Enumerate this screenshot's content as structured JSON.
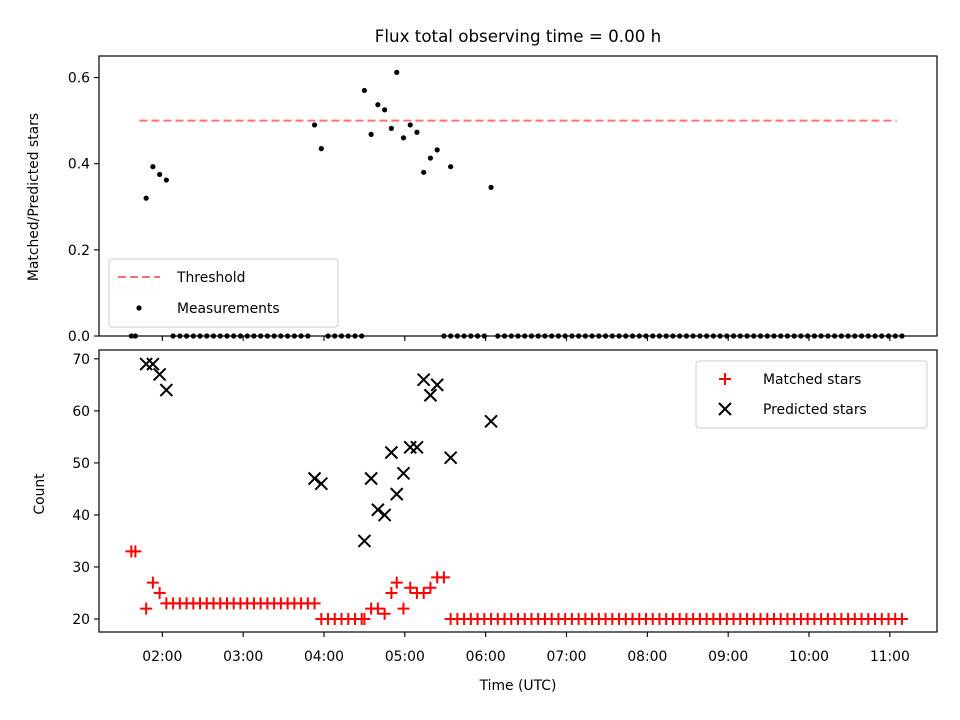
{
  "chart_data": [
    {
      "type": "scatter",
      "title": "Flux total observing time = 0.00 h",
      "xlabel": "",
      "ylabel": "Matched/Predicted stars",
      "x_range": [
        "01:13",
        "11:35"
      ],
      "ylim": [
        0,
        0.65
      ],
      "yticks": [
        "0.0",
        "0.2",
        "0.4",
        "0.6"
      ],
      "xticks": [
        "02:00",
        "03:00",
        "04:00",
        "05:00",
        "06:00",
        "07:00",
        "08:00",
        "09:00",
        "10:00",
        "11:00"
      ],
      "grid": false,
      "legend_position": "lower-left",
      "legend": [
        {
          "label": "Threshold",
          "style": "dashed-line",
          "color": "#ff7070"
        },
        {
          "label": "Measurements",
          "style": "dot",
          "color": "#000000"
        }
      ],
      "threshold": {
        "value": 0.5,
        "x_start": "01:43",
        "x_end": "11:05"
      },
      "series": [
        {
          "name": "Measurements",
          "marker": "dot",
          "color": "#000000",
          "points": [
            [
              "01:37",
              0.0
            ],
            [
              "01:40",
              0.0
            ],
            [
              "01:48",
              0.32
            ],
            [
              "01:53",
              0.393
            ],
            [
              "01:58",
              0.375
            ],
            [
              "02:03",
              0.362
            ],
            [
              "02:08",
              0.0
            ],
            [
              "02:13",
              0.0
            ],
            [
              "02:18",
              0.0
            ],
            [
              "02:23",
              0.0
            ],
            [
              "02:28",
              0.0
            ],
            [
              "02:33",
              0.0
            ],
            [
              "02:38",
              0.0
            ],
            [
              "02:43",
              0.0
            ],
            [
              "02:48",
              0.0
            ],
            [
              "02:53",
              0.0
            ],
            [
              "02:58",
              0.0
            ],
            [
              "03:03",
              0.0
            ],
            [
              "03:08",
              0.0
            ],
            [
              "03:13",
              0.0
            ],
            [
              "03:18",
              0.0
            ],
            [
              "03:23",
              0.0
            ],
            [
              "03:28",
              0.0
            ],
            [
              "03:33",
              0.0
            ],
            [
              "03:38",
              0.0
            ],
            [
              "03:43",
              0.0
            ],
            [
              "03:48",
              0.0
            ],
            [
              "03:53",
              0.49
            ],
            [
              "03:58",
              0.435
            ],
            [
              "04:03",
              0.0
            ],
            [
              "04:08",
              0.0
            ],
            [
              "04:13",
              0.0
            ],
            [
              "04:18",
              0.0
            ],
            [
              "04:23",
              0.0
            ],
            [
              "04:28",
              0.0
            ],
            [
              "04:30",
              0.57
            ],
            [
              "04:35",
              0.468
            ],
            [
              "04:40",
              0.537
            ],
            [
              "04:45",
              0.525
            ],
            [
              "04:50",
              0.482
            ],
            [
              "04:54",
              0.612
            ],
            [
              "04:59",
              0.46
            ],
            [
              "05:04",
              0.49
            ],
            [
              "05:09",
              0.473
            ],
            [
              "05:14",
              0.38
            ],
            [
              "05:19",
              0.413
            ],
            [
              "05:24",
              0.432
            ],
            [
              "05:29",
              0.0
            ],
            [
              "05:34",
              0.0
            ],
            [
              "05:34",
              0.393
            ],
            [
              "05:39",
              0.0
            ],
            [
              "05:44",
              0.0
            ],
            [
              "05:49",
              0.0
            ],
            [
              "05:54",
              0.0
            ],
            [
              "05:59",
              0.0
            ],
            [
              "06:04",
              0.345
            ],
            [
              "06:09",
              0.0
            ],
            [
              "06:14",
              0.0
            ],
            [
              "06:19",
              0.0
            ],
            [
              "06:24",
              0.0
            ],
            [
              "06:29",
              0.0
            ],
            [
              "06:34",
              0.0
            ],
            [
              "06:39",
              0.0
            ],
            [
              "06:44",
              0.0
            ],
            [
              "06:49",
              0.0
            ],
            [
              "06:54",
              0.0
            ],
            [
              "06:59",
              0.0
            ],
            [
              "07:04",
              0.0
            ],
            [
              "07:09",
              0.0
            ],
            [
              "07:14",
              0.0
            ],
            [
              "07:19",
              0.0
            ],
            [
              "07:24",
              0.0
            ],
            [
              "07:29",
              0.0
            ],
            [
              "07:34",
              0.0
            ],
            [
              "07:39",
              0.0
            ],
            [
              "07:44",
              0.0
            ],
            [
              "07:49",
              0.0
            ],
            [
              "07:54",
              0.0
            ],
            [
              "07:59",
              0.0
            ],
            [
              "08:04",
              0.0
            ],
            [
              "08:09",
              0.0
            ],
            [
              "08:14",
              0.0
            ],
            [
              "08:19",
              0.0
            ],
            [
              "08:24",
              0.0
            ],
            [
              "08:29",
              0.0
            ],
            [
              "08:34",
              0.0
            ],
            [
              "08:39",
              0.0
            ],
            [
              "08:44",
              0.0
            ],
            [
              "08:49",
              0.0
            ],
            [
              "08:54",
              0.0
            ],
            [
              "08:59",
              0.0
            ],
            [
              "09:04",
              0.0
            ],
            [
              "09:09",
              0.0
            ],
            [
              "09:14",
              0.0
            ],
            [
              "09:19",
              0.0
            ],
            [
              "09:24",
              0.0
            ],
            [
              "09:29",
              0.0
            ],
            [
              "09:34",
              0.0
            ],
            [
              "09:39",
              0.0
            ],
            [
              "09:44",
              0.0
            ],
            [
              "09:49",
              0.0
            ],
            [
              "09:54",
              0.0
            ],
            [
              "09:59",
              0.0
            ],
            [
              "10:04",
              0.0
            ],
            [
              "10:09",
              0.0
            ],
            [
              "10:14",
              0.0
            ],
            [
              "10:19",
              0.0
            ],
            [
              "10:24",
              0.0
            ],
            [
              "10:29",
              0.0
            ],
            [
              "10:34",
              0.0
            ],
            [
              "10:39",
              0.0
            ],
            [
              "10:44",
              0.0
            ],
            [
              "10:49",
              0.0
            ],
            [
              "10:54",
              0.0
            ],
            [
              "10:59",
              0.0
            ],
            [
              "11:04",
              0.0
            ],
            [
              "11:09",
              0.0
            ]
          ]
        }
      ]
    },
    {
      "type": "scatter",
      "title": "",
      "xlabel": "Time (UTC)",
      "ylabel": "Count",
      "x_range": [
        "01:13",
        "11:35"
      ],
      "ylim": [
        17.5,
        71.7
      ],
      "yticks": [
        "20",
        "30",
        "40",
        "50",
        "60",
        "70"
      ],
      "xticks": [
        "02:00",
        "03:00",
        "04:00",
        "05:00",
        "06:00",
        "07:00",
        "08:00",
        "09:00",
        "10:00",
        "11:00"
      ],
      "grid": false,
      "legend_position": "upper-right",
      "legend": [
        {
          "label": "Matched stars",
          "style": "plus",
          "color": "#ff0000"
        },
        {
          "label": "Predicted stars",
          "style": "x",
          "color": "#000000"
        }
      ],
      "series": [
        {
          "name": "Matched stars",
          "marker": "plus",
          "color": "#ff0000",
          "points": [
            [
              "01:37",
              33
            ],
            [
              "01:40",
              33
            ],
            [
              "01:48",
              22
            ],
            [
              "01:53",
              27
            ],
            [
              "01:58",
              25
            ],
            [
              "02:03",
              23
            ],
            [
              "02:08",
              23
            ],
            [
              "02:13",
              23
            ],
            [
              "02:18",
              23
            ],
            [
              "02:23",
              23
            ],
            [
              "02:28",
              23
            ],
            [
              "02:33",
              23
            ],
            [
              "02:38",
              23
            ],
            [
              "02:43",
              23
            ],
            [
              "02:48",
              23
            ],
            [
              "02:53",
              23
            ],
            [
              "02:58",
              23
            ],
            [
              "03:03",
              23
            ],
            [
              "03:08",
              23
            ],
            [
              "03:13",
              23
            ],
            [
              "03:18",
              23
            ],
            [
              "03:23",
              23
            ],
            [
              "03:28",
              23
            ],
            [
              "03:33",
              23
            ],
            [
              "03:38",
              23
            ],
            [
              "03:43",
              23
            ],
            [
              "03:48",
              23
            ],
            [
              "03:53",
              23
            ],
            [
              "03:58",
              20
            ],
            [
              "04:03",
              20
            ],
            [
              "04:08",
              20
            ],
            [
              "04:13",
              20
            ],
            [
              "04:18",
              20
            ],
            [
              "04:23",
              20
            ],
            [
              "04:28",
              20
            ],
            [
              "04:30",
              20
            ],
            [
              "04:35",
              22
            ],
            [
              "04:40",
              22
            ],
            [
              "04:45",
              21
            ],
            [
              "04:50",
              25
            ],
            [
              "04:54",
              27
            ],
            [
              "04:59",
              22
            ],
            [
              "05:04",
              26
            ],
            [
              "05:09",
              25
            ],
            [
              "05:14",
              25
            ],
            [
              "05:19",
              26
            ],
            [
              "05:24",
              28
            ],
            [
              "05:29",
              28
            ],
            [
              "05:34",
              20
            ],
            [
              "05:39",
              20
            ],
            [
              "05:44",
              20
            ],
            [
              "05:49",
              20
            ],
            [
              "05:54",
              20
            ],
            [
              "05:59",
              20
            ],
            [
              "06:04",
              20
            ],
            [
              "06:09",
              20
            ],
            [
              "06:14",
              20
            ],
            [
              "06:19",
              20
            ],
            [
              "06:24",
              20
            ],
            [
              "06:29",
              20
            ],
            [
              "06:34",
              20
            ],
            [
              "06:39",
              20
            ],
            [
              "06:44",
              20
            ],
            [
              "06:49",
              20
            ],
            [
              "06:54",
              20
            ],
            [
              "06:59",
              20
            ],
            [
              "07:04",
              20
            ],
            [
              "07:09",
              20
            ],
            [
              "07:14",
              20
            ],
            [
              "07:19",
              20
            ],
            [
              "07:24",
              20
            ],
            [
              "07:29",
              20
            ],
            [
              "07:34",
              20
            ],
            [
              "07:39",
              20
            ],
            [
              "07:44",
              20
            ],
            [
              "07:49",
              20
            ],
            [
              "07:54",
              20
            ],
            [
              "07:59",
              20
            ],
            [
              "08:04",
              20
            ],
            [
              "08:09",
              20
            ],
            [
              "08:14",
              20
            ],
            [
              "08:19",
              20
            ],
            [
              "08:24",
              20
            ],
            [
              "08:29",
              20
            ],
            [
              "08:34",
              20
            ],
            [
              "08:39",
              20
            ],
            [
              "08:44",
              20
            ],
            [
              "08:49",
              20
            ],
            [
              "08:54",
              20
            ],
            [
              "08:59",
              20
            ],
            [
              "09:04",
              20
            ],
            [
              "09:09",
              20
            ],
            [
              "09:14",
              20
            ],
            [
              "09:19",
              20
            ],
            [
              "09:24",
              20
            ],
            [
              "09:29",
              20
            ],
            [
              "09:34",
              20
            ],
            [
              "09:39",
              20
            ],
            [
              "09:44",
              20
            ],
            [
              "09:49",
              20
            ],
            [
              "09:54",
              20
            ],
            [
              "09:59",
              20
            ],
            [
              "10:04",
              20
            ],
            [
              "10:09",
              20
            ],
            [
              "10:14",
              20
            ],
            [
              "10:19",
              20
            ],
            [
              "10:24",
              20
            ],
            [
              "10:29",
              20
            ],
            [
              "10:34",
              20
            ],
            [
              "10:39",
              20
            ],
            [
              "10:44",
              20
            ],
            [
              "10:49",
              20
            ],
            [
              "10:54",
              20
            ],
            [
              "10:59",
              20
            ],
            [
              "11:04",
              20
            ],
            [
              "11:09",
              20
            ]
          ]
        },
        {
          "name": "Predicted stars",
          "marker": "x",
          "color": "#000000",
          "points": [
            [
              "01:48",
              69
            ],
            [
              "01:53",
              69
            ],
            [
              "01:58",
              67
            ],
            [
              "02:03",
              64
            ],
            [
              "03:53",
              47
            ],
            [
              "03:58",
              46
            ],
            [
              "04:30",
              35
            ],
            [
              "04:35",
              47
            ],
            [
              "04:40",
              41
            ],
            [
              "04:45",
              40
            ],
            [
              "04:50",
              52
            ],
            [
              "04:54",
              44
            ],
            [
              "04:59",
              48
            ],
            [
              "05:04",
              53
            ],
            [
              "05:09",
              53
            ],
            [
              "05:14",
              66
            ],
            [
              "05:19",
              63
            ],
            [
              "05:24",
              65
            ],
            [
              "05:34",
              51
            ],
            [
              "06:04",
              58
            ]
          ]
        }
      ]
    }
  ]
}
